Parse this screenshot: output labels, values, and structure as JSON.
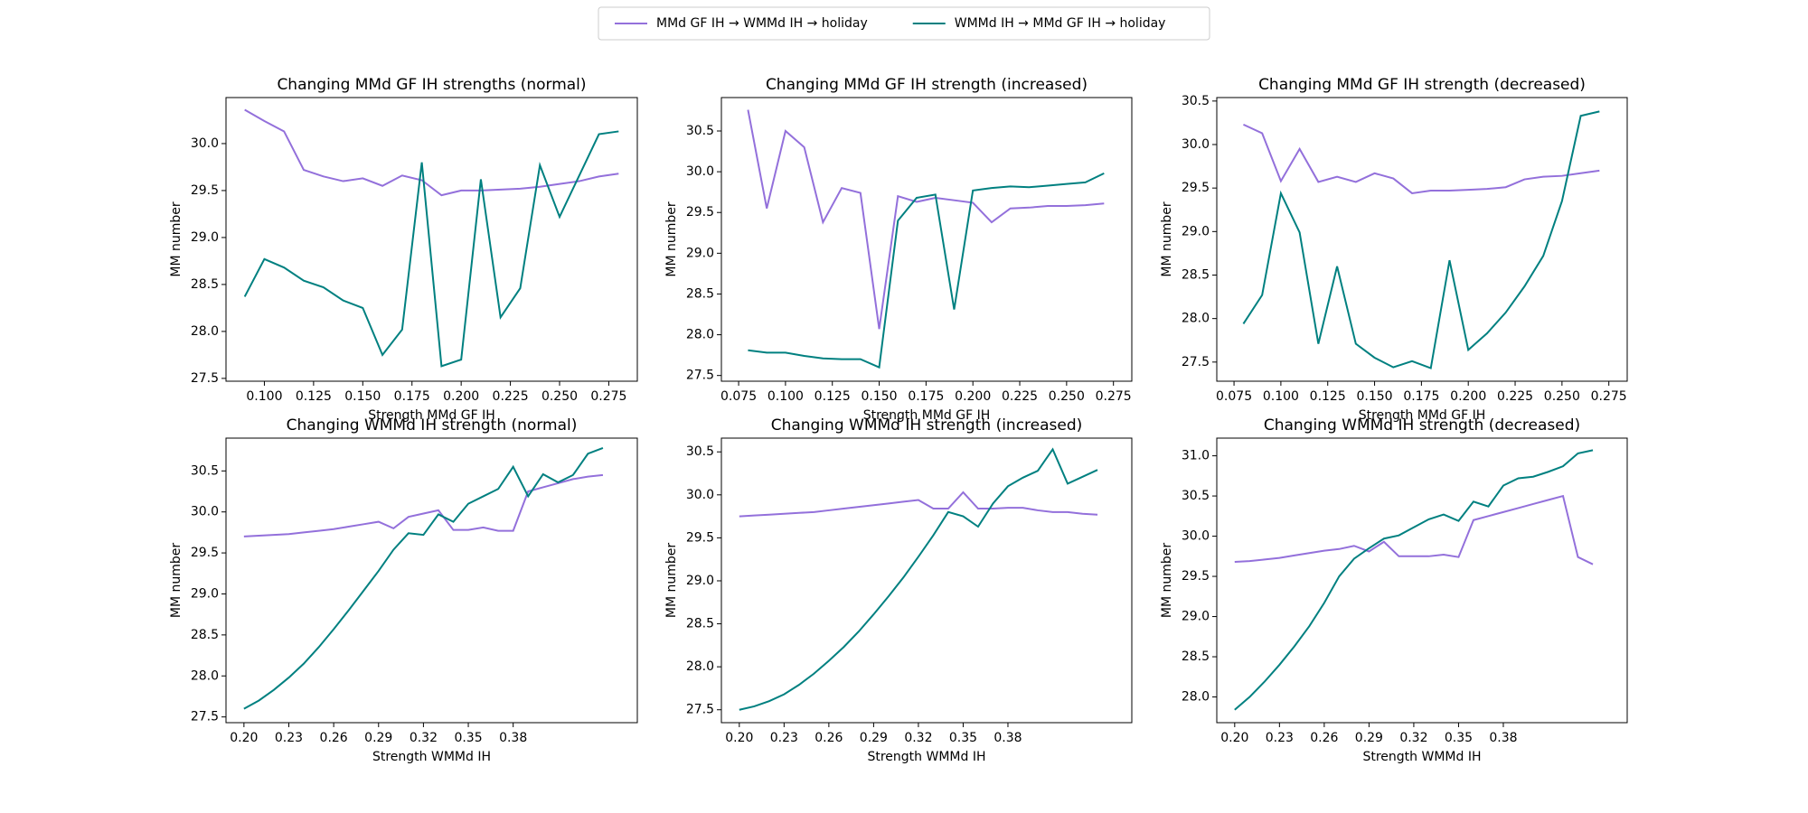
{
  "legend": [
    {
      "name": "MMd GF IH → WMMd IH → holiday",
      "color": "#9370db"
    },
    {
      "name": "WMMd IH → MMd GF IH → holiday",
      "color": "#008080"
    }
  ],
  "chart_data": [
    {
      "type": "line",
      "title": "Changing MMd GF IH strengths (normal)",
      "xlabel": "Strength MMd GF IH",
      "ylabel": "MM number",
      "x": [
        0.09,
        0.1,
        0.11,
        0.12,
        0.13,
        0.14,
        0.15,
        0.16,
        0.17,
        0.18,
        0.19,
        0.2,
        0.21,
        0.22,
        0.23,
        0.24,
        0.25,
        0.26,
        0.27,
        0.28
      ],
      "series": [
        {
          "color": "#9370db",
          "values": [
            30.36,
            30.24,
            30.13,
            29.72,
            29.65,
            29.6,
            29.63,
            29.55,
            29.66,
            29.61,
            29.45,
            29.5,
            29.5,
            29.51,
            29.52,
            29.54,
            29.57,
            29.6,
            29.65,
            29.68
          ]
        },
        {
          "color": "#008080",
          "values": [
            28.37,
            28.77,
            28.68,
            28.54,
            28.47,
            28.33,
            28.25,
            27.75,
            28.02,
            29.8,
            27.63,
            27.7,
            29.62,
            28.15,
            28.46,
            29.77,
            29.22,
            29.66,
            30.1,
            30.13
          ]
        }
      ],
      "xlim": [
        0.0805,
        0.2895
      ],
      "ylim": [
        27.47,
        30.49
      ],
      "xticks": [
        {
          "value": 0.1,
          "label": "0.100"
        },
        0.125,
        {
          "value": 0.15,
          "label": "0.150"
        },
        0.175,
        {
          "value": 0.2,
          "label": "0.200"
        },
        0.225,
        {
          "value": 0.25,
          "label": "0.250"
        },
        0.275
      ],
      "yticks": [
        27.5,
        {
          "value": 28,
          "label": "28.0"
        },
        28.5,
        {
          "value": 29,
          "label": "29.0"
        },
        29.5,
        {
          "value": 30,
          "label": "30.0"
        }
      ]
    },
    {
      "type": "line",
      "title": "Changing MMd GF IH strength (increased)",
      "xlabel": "Strength MMd GF IH",
      "ylabel": "MM number",
      "x": [
        0.08,
        0.09,
        0.1,
        0.11,
        0.12,
        0.13,
        0.14,
        0.15,
        0.16,
        0.17,
        0.18,
        0.19,
        0.2,
        0.21,
        0.22,
        0.23,
        0.24,
        0.25,
        0.26,
        0.27
      ],
      "series": [
        {
          "color": "#9370db",
          "values": [
            30.76,
            29.55,
            30.5,
            30.3,
            29.38,
            29.8,
            29.74,
            28.07,
            29.7,
            29.63,
            29.68,
            29.65,
            29.62,
            29.38,
            29.55,
            29.56,
            29.58,
            29.58,
            29.59,
            29.61
          ]
        },
        {
          "color": "#008080",
          "values": [
            27.81,
            27.78,
            27.78,
            27.74,
            27.71,
            27.7,
            27.7,
            27.6,
            29.4,
            29.68,
            29.72,
            28.31,
            29.77,
            29.8,
            29.82,
            29.81,
            29.83,
            29.85,
            29.87,
            29.98
          ]
        }
      ],
      "xlim": [
        0.0658,
        0.2848
      ],
      "ylim": [
        27.43,
        30.91
      ],
      "xticks": [
        0.075,
        {
          "value": 0.1,
          "label": "0.100"
        },
        0.125,
        {
          "value": 0.15,
          "label": "0.150"
        },
        0.175,
        {
          "value": 0.2,
          "label": "0.200"
        },
        0.225,
        {
          "value": 0.25,
          "label": "0.250"
        },
        0.275
      ],
      "yticks": [
        27.5,
        {
          "value": 28,
          "label": "28.0"
        },
        28.5,
        {
          "value": 29,
          "label": "29.0"
        },
        29.5,
        {
          "value": 30,
          "label": "30.0"
        },
        30.5
      ]
    },
    {
      "type": "line",
      "title": "Changing MMd GF IH strength (decreased)",
      "xlabel": "Strength MMd GF IH",
      "ylabel": "MM number",
      "x": [
        0.08,
        0.09,
        0.1,
        0.11,
        0.12,
        0.13,
        0.14,
        0.15,
        0.16,
        0.17,
        0.18,
        0.19,
        0.2,
        0.21,
        0.22,
        0.23,
        0.24,
        0.25,
        0.26,
        0.27
      ],
      "series": [
        {
          "color": "#9370db",
          "values": [
            30.23,
            30.13,
            29.58,
            29.95,
            29.57,
            29.63,
            29.57,
            29.67,
            29.61,
            29.44,
            29.47,
            29.47,
            29.48,
            29.49,
            29.51,
            29.6,
            29.63,
            29.64,
            29.67,
            29.7
          ]
        },
        {
          "color": "#008080",
          "values": [
            27.94,
            28.27,
            29.44,
            28.99,
            27.71,
            28.6,
            27.71,
            27.55,
            27.44,
            27.51,
            27.43,
            28.67,
            27.64,
            27.83,
            28.07,
            28.37,
            28.72,
            29.35,
            30.33,
            30.38
          ]
        }
      ],
      "xlim": [
        0.0658,
        0.2848
      ],
      "ylim": [
        27.28,
        30.54
      ],
      "xticks": [
        0.075,
        {
          "value": 0.1,
          "label": "0.100"
        },
        0.125,
        {
          "value": 0.15,
          "label": "0.150"
        },
        0.175,
        {
          "value": 0.2,
          "label": "0.200"
        },
        0.225,
        {
          "value": 0.25,
          "label": "0.250"
        },
        0.275
      ],
      "yticks": [
        27.5,
        {
          "value": 28,
          "label": "28.0"
        },
        28.5,
        {
          "value": 29,
          "label": "29.0"
        },
        29.5,
        {
          "value": 30,
          "label": "30.0"
        },
        30.5
      ]
    },
    {
      "type": "line",
      "title": "Changing WMMd IH strength (normal)",
      "xlabel": "Strength WMMd IH",
      "ylabel": "MM number",
      "x": [
        0.2,
        0.21,
        0.22,
        0.23,
        0.24,
        0.25,
        0.26,
        0.27,
        0.28,
        0.29,
        0.3,
        0.31,
        0.32,
        0.33,
        0.34,
        0.35,
        0.36,
        0.37,
        0.38,
        0.39,
        0.4,
        0.41,
        0.42,
        0.43,
        0.44
      ],
      "series": [
        {
          "color": "#9370db",
          "values": [
            29.7,
            29.71,
            29.72,
            29.73,
            29.75,
            29.77,
            29.79,
            29.82,
            29.85,
            29.88,
            29.8,
            29.94,
            29.98,
            30.02,
            29.78,
            29.78,
            29.81,
            29.77,
            29.77,
            30.25,
            30.3,
            30.35,
            30.4,
            30.43,
            30.45
          ]
        },
        {
          "color": "#008080",
          "values": [
            27.6,
            27.7,
            27.83,
            27.98,
            28.15,
            28.35,
            28.57,
            28.8,
            29.04,
            29.28,
            29.54,
            29.74,
            29.72,
            29.97,
            29.88,
            30.1,
            30.19,
            30.28,
            30.55,
            30.19,
            30.46,
            30.36,
            30.45,
            30.71,
            30.78
          ]
        }
      ],
      "xlim": [
        0.188,
        0.463
      ],
      "ylim": [
        27.43,
        30.9
      ],
      "xticks": [
        {
          "value": 0.2,
          "label": "0.20"
        },
        0.23,
        0.26,
        0.29,
        0.32,
        0.35,
        0.38
      ],
      "yticks": [
        27.5,
        {
          "value": 28,
          "label": "28.0"
        },
        28.5,
        {
          "value": 29,
          "label": "29.0"
        },
        29.5,
        {
          "value": 30,
          "label": "30.0"
        },
        30.5
      ]
    },
    {
      "type": "line",
      "title": "Changing WMMd IH strength (increased)",
      "xlabel": "Strength WMMd IH",
      "ylabel": "MM number",
      "x": [
        0.2,
        0.21,
        0.22,
        0.23,
        0.24,
        0.25,
        0.26,
        0.27,
        0.28,
        0.29,
        0.3,
        0.31,
        0.32,
        0.33,
        0.34,
        0.35,
        0.36,
        0.37,
        0.38,
        0.39,
        0.4,
        0.41,
        0.42,
        0.43,
        0.44
      ],
      "series": [
        {
          "color": "#9370db",
          "values": [
            29.75,
            29.76,
            29.77,
            29.78,
            29.79,
            29.8,
            29.82,
            29.84,
            29.86,
            29.88,
            29.9,
            29.92,
            29.94,
            29.84,
            29.84,
            30.03,
            29.84,
            29.84,
            29.85,
            29.85,
            29.82,
            29.8,
            29.8,
            29.78,
            29.77
          ]
        },
        {
          "color": "#008080",
          "values": [
            27.5,
            27.54,
            27.6,
            27.68,
            27.79,
            27.92,
            28.07,
            28.23,
            28.41,
            28.61,
            28.82,
            29.04,
            29.28,
            29.53,
            29.8,
            29.75,
            29.63,
            29.9,
            30.1,
            30.2,
            30.28,
            30.53,
            30.13,
            30.21,
            30.29
          ]
        }
      ],
      "xlim": [
        0.188,
        0.463
      ],
      "ylim": [
        27.35,
        30.66
      ],
      "xticks": [
        {
          "value": 0.2,
          "label": "0.20"
        },
        0.23,
        0.26,
        0.29,
        0.32,
        0.35,
        0.38
      ],
      "yticks": [
        27.5,
        {
          "value": 28,
          "label": "28.0"
        },
        28.5,
        {
          "value": 29,
          "label": "29.0"
        },
        29.5,
        {
          "value": 30,
          "label": "30.0"
        },
        30.5
      ]
    },
    {
      "type": "line",
      "title": "Changing WMMd IH strength (decreased)",
      "xlabel": "Strength WMMd IH",
      "ylabel": "MM number",
      "x": [
        0.2,
        0.21,
        0.22,
        0.23,
        0.24,
        0.25,
        0.26,
        0.27,
        0.28,
        0.29,
        0.3,
        0.31,
        0.32,
        0.33,
        0.34,
        0.35,
        0.36,
        0.37,
        0.38,
        0.39,
        0.4,
        0.41,
        0.42,
        0.43,
        0.44
      ],
      "series": [
        {
          "color": "#9370db",
          "values": [
            29.68,
            29.69,
            29.71,
            29.73,
            29.76,
            29.79,
            29.82,
            29.84,
            29.88,
            29.81,
            29.93,
            29.75,
            29.75,
            29.75,
            29.77,
            29.74,
            30.2,
            30.25,
            30.3,
            30.35,
            30.4,
            30.45,
            30.5,
            29.74,
            29.65
          ]
        },
        {
          "color": "#008080",
          "values": [
            27.84,
            28.0,
            28.19,
            28.4,
            28.63,
            28.88,
            29.17,
            29.5,
            29.72,
            29.85,
            29.97,
            30.01,
            30.11,
            30.21,
            30.27,
            30.19,
            30.43,
            30.37,
            30.63,
            30.72,
            30.74,
            30.8,
            30.87,
            31.03,
            31.07
          ]
        }
      ],
      "xlim": [
        0.188,
        0.463
      ],
      "ylim": [
        27.68,
        31.22
      ],
      "xticks": [
        {
          "value": 0.2,
          "label": "0.20"
        },
        0.23,
        0.26,
        0.29,
        0.32,
        0.35,
        0.38
      ],
      "yticks": [
        {
          "value": 28,
          "label": "28.0"
        },
        28.5,
        {
          "value": 29,
          "label": "29.0"
        },
        29.5,
        {
          "value": 30,
          "label": "30.0"
        },
        30.5,
        {
          "value": 31,
          "label": "31.0"
        }
      ]
    }
  ]
}
